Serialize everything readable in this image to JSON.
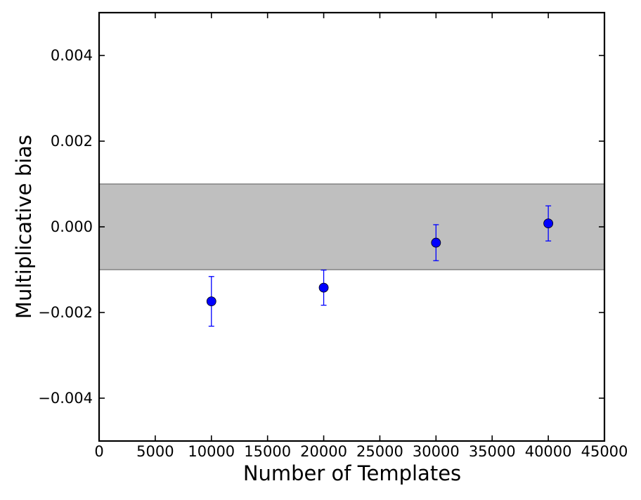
{
  "chart_data": {
    "type": "scatter",
    "title": "",
    "xlabel": "Number of Templates",
    "ylabel": "Multiplicative bias",
    "xlim": [
      0,
      45000
    ],
    "ylim": [
      -0.005,
      0.005
    ],
    "x_ticks": [
      0,
      5000,
      10000,
      15000,
      20000,
      25000,
      30000,
      35000,
      40000,
      45000
    ],
    "x_tick_labels": [
      "0",
      "5000",
      "10000",
      "15000",
      "20000",
      "25000",
      "30000",
      "35000",
      "40000",
      "45000"
    ],
    "y_ticks": [
      -0.004,
      -0.002,
      0.0,
      0.002,
      0.004
    ],
    "y_tick_labels": [
      "−0.004",
      "−0.002",
      "0.000",
      "0.002",
      "0.004"
    ],
    "grid": false,
    "legend": "none",
    "shaded_band": {
      "y_min": -0.001,
      "y_max": 0.001,
      "color": "#bfbfbf"
    },
    "series": [
      {
        "x": [
          10000,
          20000,
          30000,
          40000
        ],
        "y": [
          -0.00174,
          -0.00142,
          -0.00037,
          8e-05
        ],
        "y_err": [
          0.00058,
          0.00041,
          0.00042,
          0.00041
        ],
        "color": "#0000ff"
      }
    ]
  }
}
